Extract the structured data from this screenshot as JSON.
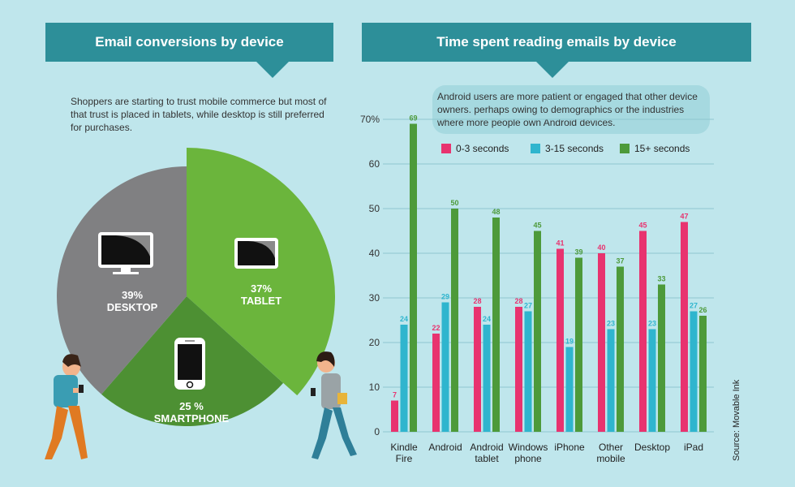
{
  "left": {
    "title": "Email conversions by device",
    "intro": "Shoppers are starting to trust mobile commerce but most of that trust is placed in tablets, while desktop is still preferred for purchases."
  },
  "right": {
    "title": "Time spent reading emails by device",
    "note": "Android users are more patient or engaged that other device owners. perhaps owing to demographics or the industries where more people own Android devices."
  },
  "source": "Source: Movable Ink",
  "colors": {
    "banner": "#2d8f99",
    "background": "#bfe6ec",
    "pink": "#e8336f",
    "blue": "#2fb5ce",
    "green": "#4d9a3a",
    "desktop": "#808082",
    "tablet": "#6bb53c",
    "smartphone": "#4d9033"
  },
  "icons": [
    "desktop-monitor-icon",
    "tablet-icon",
    "smartphone-icon",
    "man-with-phone-illustration",
    "woman-with-phone-illustration"
  ],
  "chart_data": [
    {
      "type": "pie",
      "title": "Email conversions by device",
      "slices": [
        {
          "name": "TABLET",
          "label": "37%",
          "value": 37
        },
        {
          "name": "SMARTPHONE",
          "label": "25 %",
          "value": 25
        },
        {
          "name": "DESKTOP",
          "label": "39%",
          "value": 39
        }
      ]
    },
    {
      "type": "bar",
      "title": "Time spent reading emails by device",
      "categories": [
        [
          "Kindle",
          "Fire"
        ],
        [
          "Android"
        ],
        [
          "Android",
          "tablet"
        ],
        [
          "Windows",
          "phone"
        ],
        [
          "iPhone"
        ],
        [
          "Other",
          "mobile"
        ],
        [
          "Desktop"
        ],
        [
          "iPad"
        ]
      ],
      "series": [
        {
          "name": "0-3 seconds",
          "values": [
            7,
            22,
            28,
            28,
            41,
            40,
            45,
            47
          ]
        },
        {
          "name": "3-15 seconds",
          "values": [
            24,
            29,
            24,
            27,
            19,
            23,
            23,
            27
          ]
        },
        {
          "name": "15+ seconds",
          "values": [
            69,
            50,
            48,
            45,
            39,
            37,
            33,
            26
          ]
        }
      ],
      "yticks": [
        "0",
        "10",
        "20",
        "30",
        "40",
        "50",
        "60",
        "70%"
      ],
      "ylim": [
        0,
        70
      ],
      "grid": true,
      "legend": "top"
    }
  ]
}
